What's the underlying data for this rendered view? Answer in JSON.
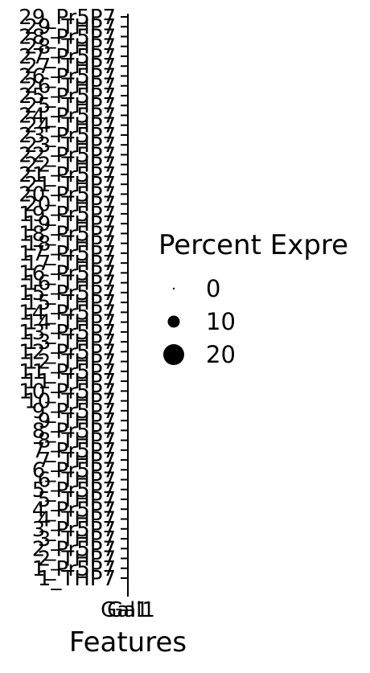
{
  "chart_data": {
    "type": "dot",
    "xlabel": "Features",
    "features": [
      "Gal1",
      "Gal1"
    ],
    "categories": [
      "1_THP7",
      "1_Pr5P7",
      "2_THP7",
      "2_Pr5P7",
      "3_THP7",
      "3_Pr5P7",
      "4_THP7",
      "4_Pr5P7",
      "5_THP7",
      "5_Pr5P7",
      "6_THP7",
      "6_Pr5P7",
      "7_THP7",
      "7_Pr5P7",
      "8_THP7",
      "8_Pr5P7",
      "9_THP7",
      "9_Pr5P7",
      "10_THP7",
      "10_Pr5P7",
      "11_THP7",
      "11_Pr5P7",
      "12_THP7",
      "12_Pr5P7",
      "13_THP7",
      "13_Pr5P7",
      "14_THP7",
      "14_Pr5P7",
      "15_THP7",
      "15_Pr5P7",
      "16_THP7",
      "16_Pr5P7",
      "17_THP7",
      "17_Pr5P7",
      "18_THP7",
      "18_Pr5P7",
      "19_THP7",
      "19_Pr5P7",
      "20_THP7",
      "20_Pr5P7",
      "21_THP7",
      "21_Pr5P7",
      "22_THP7",
      "22_Pr5P7",
      "23_THP7",
      "23_Pr5P7",
      "24_THP7",
      "24_Pr5P7",
      "25_THP7",
      "25_Pr5P7",
      "26_THP7",
      "26_Pr5P7",
      "27_THP7",
      "27_Pr5P7",
      "28_THP7",
      "28_Pr5P7",
      "29_THP7",
      "29_Pr5P7"
    ],
    "legend": {
      "title": "Percent Expre",
      "entries": [
        {
          "label": "0",
          "value": 0
        },
        {
          "label": "10",
          "value": 10
        },
        {
          "label": "20",
          "value": 20
        }
      ],
      "placement": "right"
    }
  }
}
